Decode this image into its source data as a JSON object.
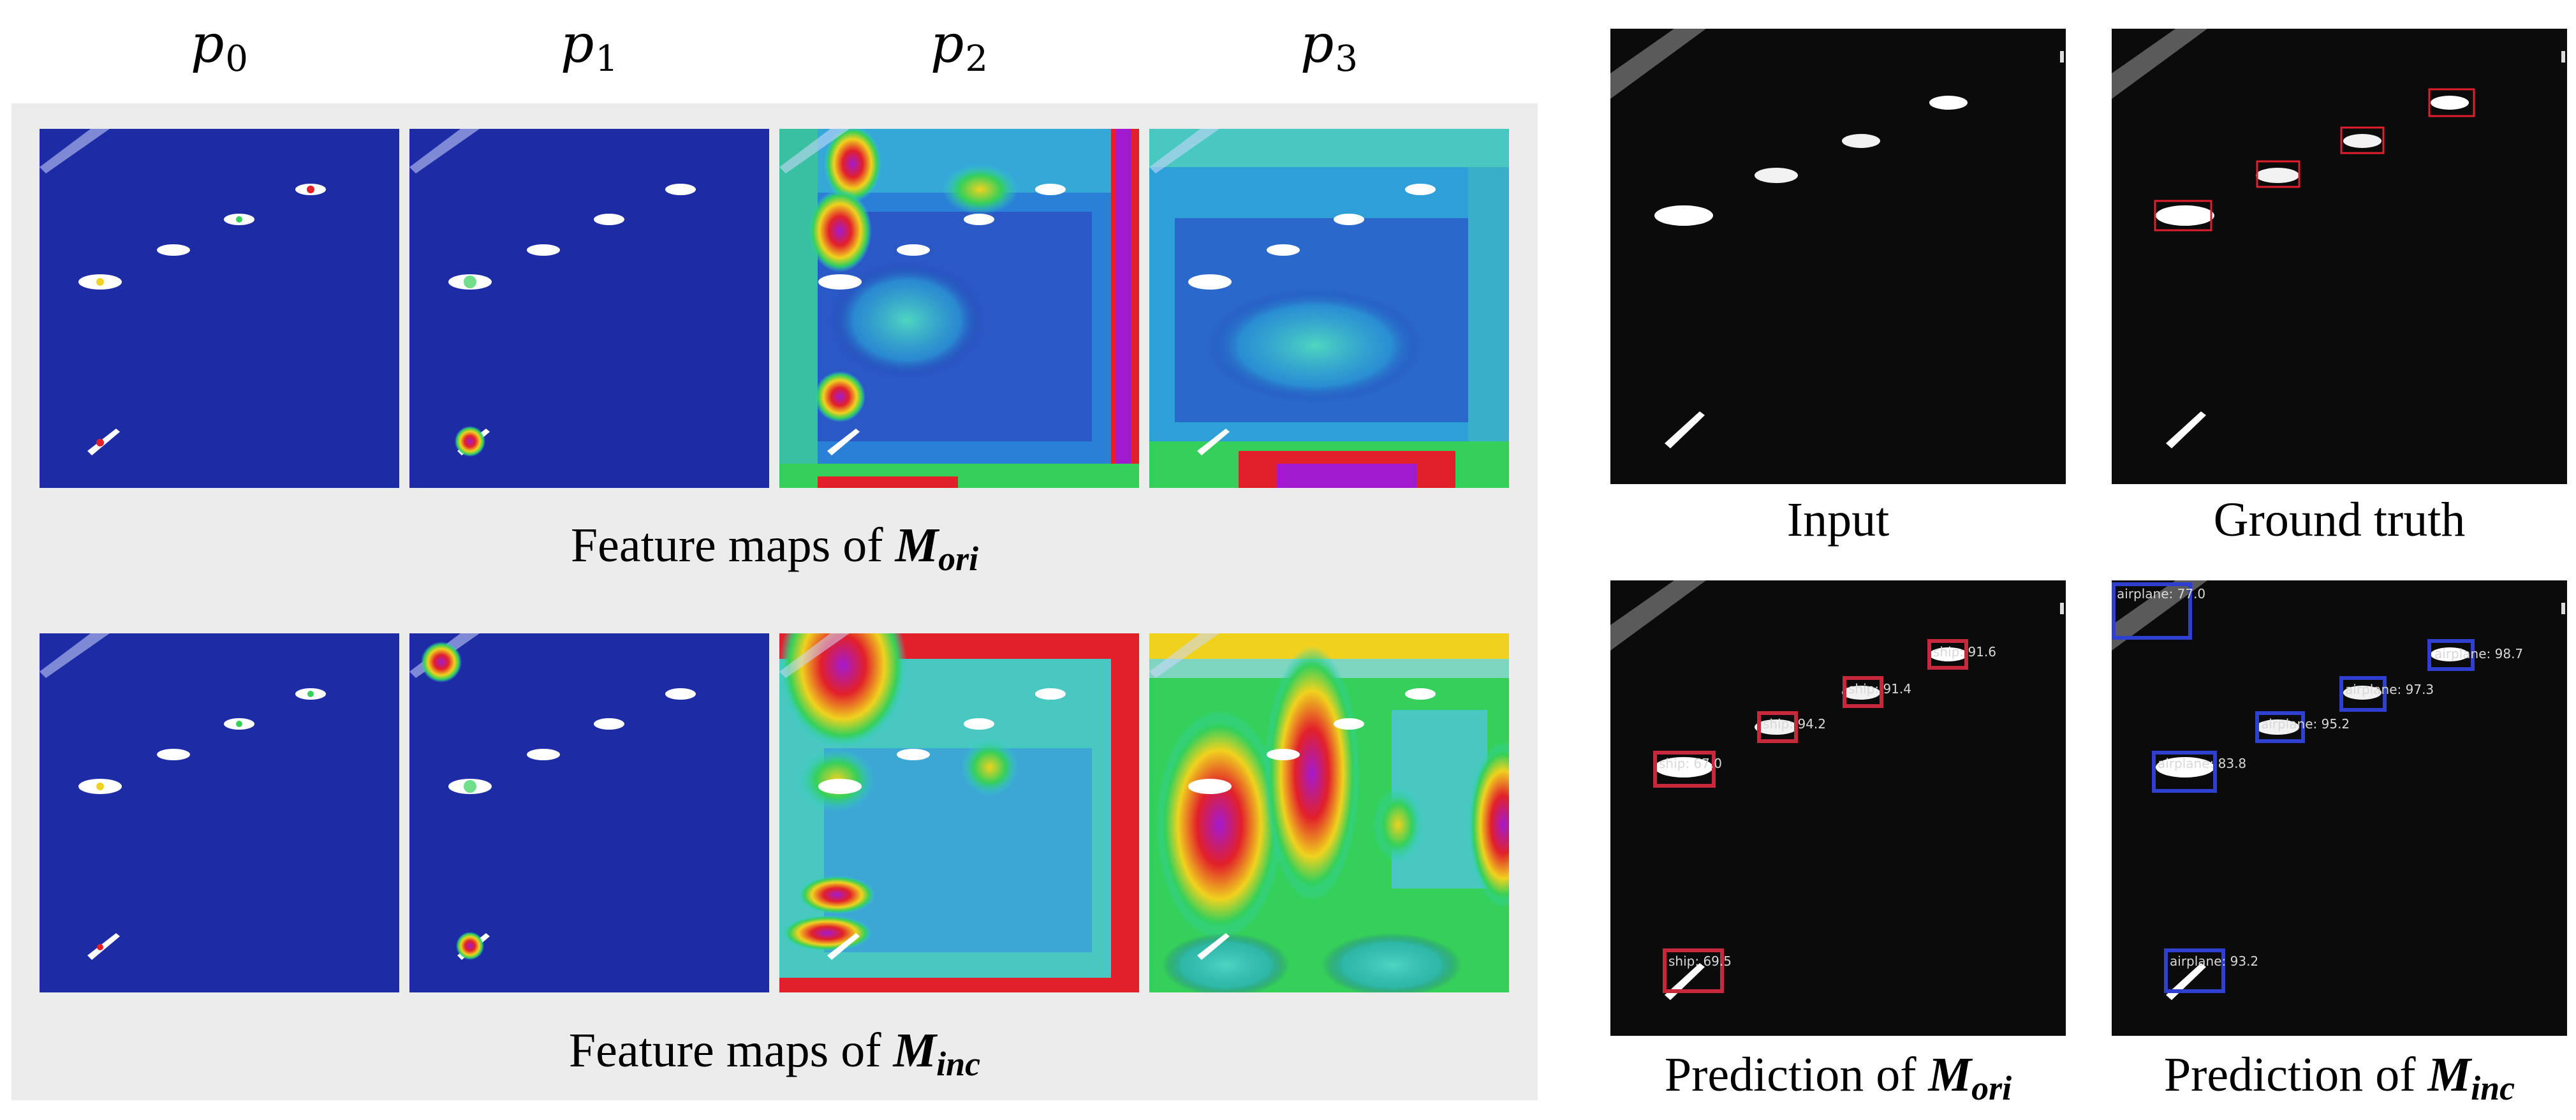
{
  "columns": [
    {
      "base": "p",
      "sub": "0"
    },
    {
      "base": "p",
      "sub": "1"
    },
    {
      "base": "p",
      "sub": "2"
    },
    {
      "base": "p",
      "sub": "3"
    }
  ],
  "rows": [
    {
      "prefix": "Feature maps of ",
      "model": "M",
      "model_sub": "ori"
    },
    {
      "prefix": "Feature maps of ",
      "model": "M",
      "model_sub": "inc"
    }
  ],
  "right_panels": {
    "input": {
      "caption": "Input"
    },
    "ground_truth": {
      "caption": "Ground truth"
    },
    "pred_ori": {
      "prefix": "Prediction of ",
      "model": "M",
      "model_sub": "ori",
      "detections": [
        {
          "label": "ship: 91.6"
        },
        {
          "label": "ship: 91.4"
        },
        {
          "label": "ship: 94.2"
        },
        {
          "label": "ship: 67.0"
        },
        {
          "label": "ship: 69.5"
        }
      ]
    },
    "pred_inc": {
      "prefix": "Prediction of ",
      "model": "M",
      "model_sub": "inc",
      "detections": [
        {
          "label": "airplane: 77.0"
        },
        {
          "label": "airplane: 98.7"
        },
        {
          "label": "airplane: 97.3"
        },
        {
          "label": "airplane: 95.2"
        },
        {
          "label": "airplane: 83.8"
        },
        {
          "label": "airplane: 93.2"
        }
      ]
    }
  },
  "colors": {
    "heatmap_low": "#1d2ca5",
    "heatmap_mid": "#2fd0d0",
    "heatmap_high": "#e2202a",
    "peak": "#a21ad0",
    "panel_bg": "#ececec",
    "ship_box": "#c8283c",
    "airplane_box": "#2f3fd0",
    "gt_box": "#e01e2e"
  }
}
